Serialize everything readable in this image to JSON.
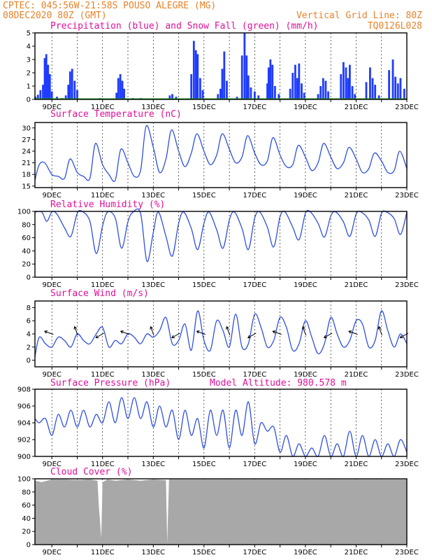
{
  "header": {
    "line1": "CPTEC:   045:56W-21:58S  POUSO ALEGRE (MG)",
    "line2": "08DEC2020 80Z (GMT)",
    "grid_note": "Vertical Grid Line: 80Z",
    "code": "TQ0126L028"
  },
  "colors": {
    "precip": "#1f3cff",
    "snow": "#1aa31a",
    "line": "#2f4fdf",
    "cloud": "#a8a8a8",
    "header": "#e8822a",
    "title": "#e0109a"
  },
  "x_dates": [
    "9DEC",
    "11DEC",
    "13DEC",
    "15DEC",
    "17DEC",
    "19DEC",
    "21DEC",
    "23DEC"
  ],
  "chart_data": [
    {
      "id": "precip",
      "type": "bar",
      "title": "Precipitation (blue) and Snow Fall (green) (mm/h)",
      "ylim": [
        0,
        5
      ],
      "yticks": [
        0,
        1,
        2,
        3,
        4,
        5
      ],
      "x_range_days": [
        8.333,
        23
      ],
      "series": [
        {
          "name": "Precipitation",
          "x": [
            8.35,
            8.45,
            8.55,
            8.65,
            8.72,
            8.78,
            8.85,
            8.92,
            9.0,
            9.2,
            9.4,
            9.55,
            9.65,
            9.72,
            9.8,
            9.9,
            10.0,
            10.9,
            11.55,
            11.62,
            11.7,
            11.78,
            11.85,
            12.2,
            12.5,
            13.65,
            13.75,
            13.9,
            14.5,
            14.6,
            14.68,
            14.75,
            14.85,
            14.95,
            15.55,
            15.65,
            15.72,
            15.8,
            15.9,
            16.3,
            16.5,
            16.6,
            16.68,
            16.75,
            16.85,
            17.0,
            17.15,
            17.5,
            17.55,
            17.62,
            17.7,
            17.8,
            17.95,
            18.4,
            18.5,
            18.6,
            18.68,
            18.75,
            18.85,
            18.95,
            19.5,
            19.6,
            19.7,
            19.8,
            19.9,
            20.4,
            20.5,
            20.6,
            20.68,
            20.75,
            20.85,
            20.95,
            21.4,
            21.55,
            21.65,
            21.75,
            21.9,
            22.3,
            22.45,
            22.55,
            22.65,
            22.75,
            22.9
          ],
          "values": [
            0.2,
            0.35,
            0.7,
            1.1,
            3.1,
            3.4,
            2.6,
            1.9,
            0.6,
            0.2,
            0.1,
            0.3,
            1.1,
            2.1,
            2.3,
            1.4,
            0.7,
            0.1,
            0.5,
            1.6,
            1.9,
            1.4,
            0.8,
            0.1,
            0.1,
            0.3,
            0.4,
            0.2,
            1.9,
            4.4,
            3.7,
            3.4,
            1.6,
            0.7,
            0.4,
            0.8,
            2.3,
            3.6,
            1.4,
            0.2,
            3.3,
            5.0,
            3.3,
            1.8,
            0.9,
            0.6,
            0.3,
            1.2,
            2.4,
            3.0,
            2.6,
            1.0,
            0.4,
            0.8,
            2.0,
            2.6,
            1.6,
            2.7,
            1.2,
            0.5,
            0.4,
            1.0,
            1.6,
            1.4,
            0.6,
            1.9,
            2.8,
            2.4,
            1.6,
            2.6,
            1.0,
            0.4,
            1.3,
            2.4,
            1.6,
            1.1,
            0.3,
            2.2,
            3.0,
            1.7,
            1.2,
            1.6,
            0.8
          ]
        },
        {
          "name": "Snow Fall",
          "x": [
            8.333,
            23
          ],
          "values": [
            0,
            0
          ]
        }
      ]
    },
    {
      "id": "temp",
      "type": "line",
      "title": "Surface Temperature (nC)",
      "ylim": [
        14.6,
        31.4
      ],
      "yticks": [
        15,
        18,
        21,
        24,
        27,
        30
      ],
      "series": [
        {
          "name": "",
          "x": [
            8.333,
            8.5,
            8.72,
            9.0,
            9.25,
            9.5,
            9.72,
            10.0,
            10.25,
            10.5,
            10.72,
            11.0,
            11.25,
            11.5,
            11.72,
            12.0,
            12.25,
            12.5,
            12.72,
            13.0,
            13.25,
            13.5,
            13.72,
            14.0,
            14.25,
            14.5,
            14.72,
            15.0,
            15.25,
            15.5,
            15.72,
            16.0,
            16.25,
            16.5,
            16.72,
            17.0,
            17.25,
            17.5,
            17.72,
            18.0,
            18.25,
            18.5,
            18.72,
            19.0,
            19.25,
            19.5,
            19.72,
            20.0,
            20.25,
            20.5,
            20.72,
            21.0,
            21.25,
            21.5,
            21.72,
            22.0,
            22.25,
            22.5,
            22.72,
            23.0
          ],
          "values": [
            16.5,
            20.5,
            21.0,
            18.0,
            17.5,
            17.0,
            22.0,
            18.5,
            17.5,
            17.0,
            26.0,
            20.5,
            18.0,
            16.5,
            24.5,
            21.0,
            17.5,
            19.0,
            30.5,
            25.0,
            18.5,
            22.0,
            29.5,
            24.0,
            20.0,
            23.5,
            28.5,
            24.0,
            20.5,
            23.0,
            28.5,
            24.5,
            21.0,
            22.5,
            28.0,
            23.5,
            20.5,
            21.5,
            27.5,
            23.0,
            20.0,
            20.5,
            25.5,
            22.5,
            19.0,
            21.0,
            26.0,
            22.5,
            19.5,
            21.0,
            25.0,
            22.0,
            18.5,
            19.5,
            23.5,
            21.5,
            18.5,
            19.0,
            24.0,
            19.5
          ]
        }
      ]
    },
    {
      "id": "rh",
      "type": "line",
      "title": "Relative Humidity (%)",
      "ylim": [
        0,
        100
      ],
      "yticks": [
        0,
        20,
        40,
        60,
        80,
        100
      ],
      "series": [
        {
          "name": "",
          "x": [
            8.333,
            8.6,
            8.8,
            9.0,
            9.2,
            9.5,
            9.75,
            10.0,
            10.2,
            10.5,
            10.75,
            11.0,
            11.2,
            11.5,
            11.75,
            12.0,
            12.2,
            12.5,
            12.75,
            13.0,
            13.2,
            13.5,
            13.75,
            14.0,
            14.2,
            14.5,
            14.75,
            15.0,
            15.2,
            15.5,
            15.75,
            16.0,
            16.2,
            16.5,
            16.75,
            17.0,
            17.2,
            17.5,
            17.75,
            18.0,
            18.2,
            18.5,
            18.75,
            19.0,
            19.2,
            19.5,
            19.75,
            20.0,
            20.2,
            20.5,
            20.75,
            21.0,
            21.2,
            21.5,
            21.75,
            22.0,
            22.2,
            22.5,
            22.75,
            23.0
          ],
          "values": [
            99,
            99,
            85,
            99,
            96,
            75,
            62,
            97,
            100,
            85,
            36,
            78,
            99,
            90,
            44,
            84,
            99,
            97,
            24,
            68,
            99,
            62,
            32,
            82,
            99,
            74,
            42,
            82,
            99,
            72,
            44,
            87,
            99,
            74,
            42,
            90,
            99,
            76,
            46,
            92,
            99,
            76,
            57,
            97,
            99,
            82,
            61,
            93,
            99,
            84,
            62,
            96,
            99,
            87,
            62,
            97,
            99,
            89,
            65,
            99
          ]
        }
      ]
    },
    {
      "id": "wind",
      "type": "line",
      "title": "Surface Wind (m/s)",
      "ylim": [
        -1,
        9
      ],
      "yticks": [
        0,
        2,
        4,
        6,
        8
      ],
      "series": [
        {
          "name": "Speed",
          "x": [
            8.333,
            8.5,
            8.75,
            9.0,
            9.25,
            9.5,
            9.75,
            10.0,
            10.25,
            10.5,
            10.75,
            11.0,
            11.25,
            11.5,
            11.75,
            12.0,
            12.25,
            12.5,
            12.75,
            13.0,
            13.25,
            13.5,
            13.75,
            14.0,
            14.25,
            14.5,
            14.75,
            15.0,
            15.25,
            15.5,
            15.75,
            16.0,
            16.25,
            16.5,
            16.75,
            17.0,
            17.25,
            17.5,
            17.75,
            18.0,
            18.25,
            18.5,
            18.75,
            19.0,
            19.25,
            19.5,
            19.75,
            20.0,
            20.25,
            20.5,
            20.75,
            21.0,
            21.25,
            21.5,
            21.75,
            22.0,
            22.25,
            22.5,
            22.75,
            23.0
          ],
          "values": [
            0.5,
            3.5,
            2.5,
            2.0,
            3.5,
            3.0,
            2.0,
            4.0,
            3.0,
            2.5,
            4.0,
            5.0,
            2.0,
            3.0,
            2.5,
            4.0,
            3.5,
            2.5,
            4.0,
            3.5,
            4.5,
            6.5,
            2.5,
            3.0,
            5.5,
            1.5,
            7.5,
            3.0,
            1.5,
            6.0,
            4.5,
            2.0,
            7.0,
            2.0,
            2.5,
            7.0,
            5.0,
            2.0,
            3.0,
            6.5,
            5.0,
            1.5,
            2.5,
            6.0,
            3.5,
            1.0,
            2.5,
            6.5,
            4.0,
            2.0,
            3.0,
            6.0,
            5.5,
            2.0,
            3.0,
            7.5,
            4.5,
            2.0,
            4.0,
            2.5
          ]
        },
        {
          "name": "Direction",
          "x": [
            9.0,
            10.0,
            11.0,
            12.0,
            13.0,
            14.0,
            15.0,
            16.0,
            17.0,
            18.0,
            19.0,
            20.0,
            21.0,
            22.0,
            23.0
          ],
          "values": [
            4,
            4,
            4,
            4,
            4,
            4,
            4,
            4,
            4,
            4,
            4,
            4,
            4,
            4,
            4
          ]
        }
      ]
    },
    {
      "id": "pres",
      "type": "line",
      "title": "Surface Pressure (hPa)",
      "annotation": "Model Altitude: 980.578 m",
      "ylim": [
        900,
        908
      ],
      "yticks": [
        900,
        902,
        904,
        906,
        908
      ],
      "series": [
        {
          "name": "",
          "x": [
            8.333,
            8.5,
            8.75,
            9.0,
            9.25,
            9.5,
            9.75,
            10.0,
            10.25,
            10.5,
            10.75,
            11.0,
            11.25,
            11.5,
            11.75,
            12.0,
            12.25,
            12.5,
            12.75,
            13.0,
            13.25,
            13.5,
            13.75,
            14.0,
            14.25,
            14.5,
            14.75,
            15.0,
            15.25,
            15.5,
            15.75,
            16.0,
            16.25,
            16.5,
            16.75,
            17.0,
            17.25,
            17.5,
            17.75,
            18.0,
            18.25,
            18.5,
            18.75,
            19.0,
            19.25,
            19.5,
            19.75,
            20.0,
            20.25,
            20.5,
            20.75,
            21.0,
            21.25,
            21.5,
            21.75,
            22.0,
            22.25,
            22.5,
            22.75,
            23.0
          ],
          "values": [
            904.5,
            904.0,
            904.5,
            902.5,
            905.0,
            903.5,
            905.5,
            903.5,
            905.5,
            903.5,
            905.0,
            904.0,
            906.5,
            904.0,
            907.0,
            904.5,
            907.0,
            904.5,
            906.5,
            903.5,
            906.0,
            903.5,
            905.5,
            902.0,
            905.5,
            902.5,
            904.5,
            901.0,
            905.5,
            902.5,
            905.5,
            901.0,
            905.5,
            902.5,
            906.5,
            901.5,
            904.0,
            903.0,
            903.5,
            900.5,
            902.5,
            899.5,
            901.5,
            899.0,
            901.0,
            899.5,
            902.5,
            899.5,
            901.5,
            900.0,
            903.0,
            900.0,
            902.5,
            899.5,
            902.0,
            899.0,
            901.5,
            900.0,
            902.0,
            900.5
          ]
        }
      ]
    },
    {
      "id": "cloud",
      "type": "area",
      "title": "Cloud Cover (%)",
      "ylim": [
        0,
        100
      ],
      "yticks": [
        0,
        20,
        40,
        60,
        80,
        100
      ],
      "series": [
        {
          "name": "",
          "x": [
            8.333,
            8.6,
            9.0,
            9.5,
            10.0,
            10.5,
            10.8,
            10.85,
            10.95,
            11.0,
            11.2,
            11.5,
            12.0,
            12.5,
            13.0,
            13.5,
            13.55,
            13.62,
            13.7,
            14.0,
            14.5,
            15.0,
            16.0,
            17.0,
            18.0,
            19.0,
            20.0,
            21.0,
            22.0,
            23.0
          ],
          "values": [
            97,
            95,
            99,
            99,
            98,
            99,
            97,
            60,
            10,
            95,
            99,
            97,
            99,
            97,
            99,
            98,
            2,
            99,
            99,
            99,
            99,
            99,
            99,
            99,
            99,
            99,
            99,
            99,
            99,
            99
          ]
        }
      ]
    }
  ],
  "panel_titles": {
    "precip": "Precipitation (blue) and Snow Fall (green) (mm/h)",
    "temp": "Surface Temperature (nC)",
    "rh": "Relative Humidity (%)",
    "wind": "Surface Wind (m/s)",
    "pres": "Surface Pressure (hPa)",
    "pres_note": "Model Altitude: 980.578 m",
    "cloud": "Cloud Cover (%)"
  }
}
